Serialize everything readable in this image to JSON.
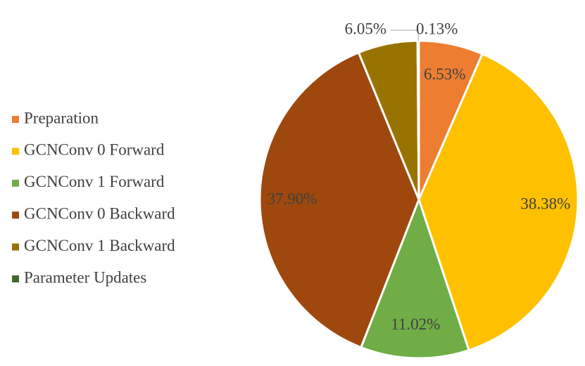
{
  "chart_data": {
    "type": "pie",
    "categories": [
      "Preparation",
      "GCNConv 0 Forward",
      "GCNConv 1 Forward",
      "GCNConv 0 Backward",
      "GCNConv 1 Backward",
      "Parameter Updates"
    ],
    "values": [
      6.53,
      38.38,
      11.02,
      37.9,
      6.05,
      0.13
    ],
    "value_labels": [
      "6.53%",
      "38.38%",
      "11.02%",
      "37.90%",
      "6.05%",
      "0.13%"
    ],
    "colors": [
      "#ED7D31",
      "#FFC000",
      "#70AD47",
      "#9E480E",
      "#997300",
      "#43682B"
    ],
    "legend": "left"
  }
}
